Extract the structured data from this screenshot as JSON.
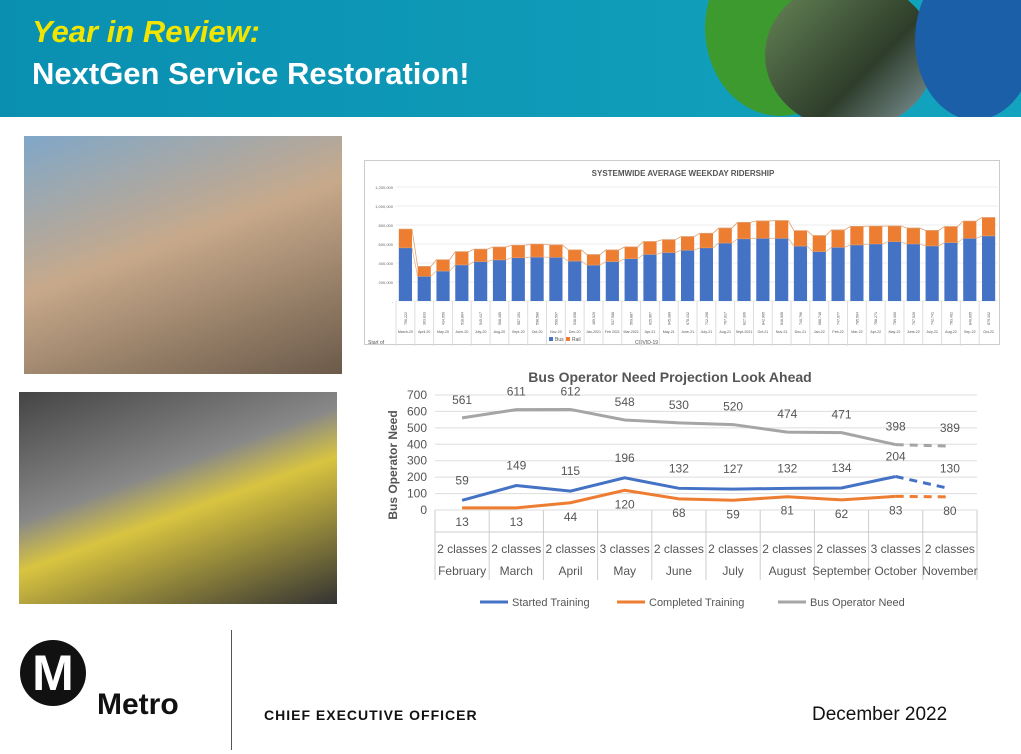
{
  "header": {
    "title_line1": "Year in Review:",
    "title_line2": "NextGen Service Restoration!"
  },
  "footer": {
    "logo_letter": "M",
    "brand": "Metro",
    "office": "CHIEF EXECUTIVE OFFICER",
    "date": "December 2022"
  },
  "colors": {
    "bus": "#4472c4",
    "rail": "#ed7d31",
    "need": "#a5a5a5",
    "header": "#0f9bb5",
    "title_yellow": "#f2e500"
  },
  "chart_data": [
    {
      "type": "bar",
      "stacked": true,
      "title": "SYSTEMWIDE AVERAGE WEEKDAY RIDERSHIP",
      "categories": [
        "March-20",
        "April-20",
        "May-20",
        "June-20",
        "July-20",
        "Aug-20",
        "Sept-20",
        "Oct-20",
        "Nov-20",
        "Dec-20",
        "Jan-2021",
        "Feb 2021",
        "Mar-2021",
        "Apr-21",
        "May-21",
        "June-21",
        "July-21",
        "Aug-21",
        "Sept-2021",
        "Oct-21",
        "Nov-21",
        "Dec-21",
        "Jan-22",
        "Feb-22",
        "Mar-22",
        "Apr-22",
        "May-22",
        "June-22",
        "July-22",
        "Aug-22",
        "Sep-22",
        "Oct-22"
      ],
      "totals": [
        756222,
        363833,
        434056,
        518864,
        545417,
        568485,
        587191,
        598580,
        590597,
        538058,
        489020,
        537588,
        569887,
        625967,
        645389,
        678432,
        712298,
        767917,
        827306,
        842905,
        846908,
        740796,
        688748,
        747977,
        785504,
        788271,
        789300,
        767526,
        742741,
        783462,
        840605,
        879102
      ],
      "series": [
        {
          "name": "Bus",
          "values": [
            560000,
            260000,
            315000,
            380000,
            415000,
            432000,
            455000,
            462000,
            460000,
            420000,
            378000,
            415000,
            445000,
            490000,
            510000,
            535000,
            560000,
            610000,
            655000,
            660000,
            660000,
            578000,
            520000,
            565000,
            590000,
            600000,
            625000,
            600000,
            580000,
            615000,
            660000,
            685000
          ]
        },
        {
          "name": "Rail",
          "values": [
            196222,
            103833,
            119056,
            138864,
            130417,
            136485,
            132191,
            136580,
            130597,
            118058,
            111020,
            122588,
            124887,
            135967,
            135389,
            143432,
            152298,
            157917,
            172306,
            182905,
            186908,
            162796,
            168748,
            182977,
            195504,
            188271,
            164300,
            167526,
            162741,
            168462,
            180605,
            194102
          ]
        }
      ],
      "yticks": [
        "-",
        "200,000",
        "400,000",
        "600,000",
        "800,000",
        "1,000,000",
        "1,200,000"
      ],
      "ylim": [
        0,
        1200000
      ],
      "annotations": [
        "Start of",
        "COVID-19"
      ],
      "legend": "bottom"
    },
    {
      "type": "line",
      "title": "Bus Operator Need Projection Look Ahead",
      "ylabel": "Bus Operator Need",
      "ylim": [
        0,
        700
      ],
      "yticks": [
        "0",
        "100",
        "200",
        "300",
        "400",
        "500",
        "600",
        "700"
      ],
      "categories": [
        "February",
        "March",
        "April",
        "May",
        "June",
        "July",
        "August",
        "September",
        "October",
        "November"
      ],
      "classes": [
        "2 classes",
        "2 classes",
        "2 classes",
        "3 classes",
        "2 classes",
        "2 classes",
        "2 classes",
        "2 classes",
        "3 classes",
        "2 classes"
      ],
      "series": [
        {
          "name": "Started Training",
          "color": "#4472c4",
          "values": [
            59,
            149,
            115,
            196,
            132,
            127,
            132,
            134,
            204,
            130
          ]
        },
        {
          "name": "Completed Training",
          "color": "#ed7d31",
          "values": [
            13,
            13,
            44,
            120,
            68,
            59,
            81,
            62,
            83,
            80
          ]
        },
        {
          "name": "Bus Operator Need",
          "color": "#a5a5a5",
          "values": [
            561,
            611,
            612,
            548,
            530,
            520,
            474,
            471,
            398,
            389
          ]
        }
      ],
      "projected_from_index": 8,
      "legend": "bottom"
    }
  ]
}
